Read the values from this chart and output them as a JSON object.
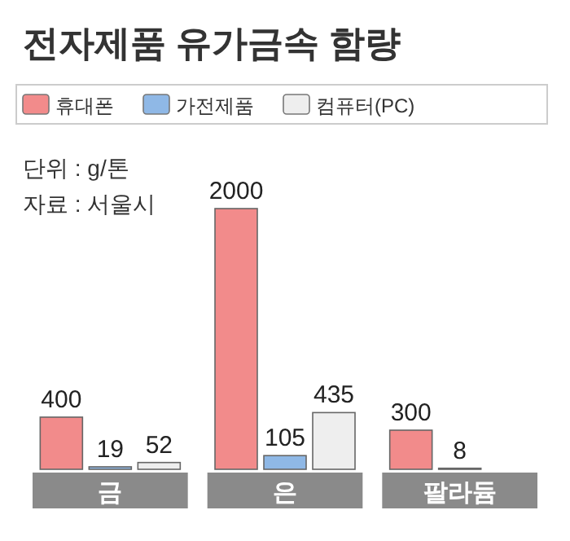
{
  "chart_data": {
    "type": "bar",
    "title": "전자제품 유가금속 함량",
    "categories": [
      "금",
      "은",
      "팔라듐"
    ],
    "series": [
      {
        "name": "휴대폰",
        "color": "#f28b8b",
        "values": [
          400,
          2000,
          300
        ]
      },
      {
        "name": "가전제품",
        "color": "#8fb8e6",
        "values": [
          19,
          105,
          8
        ]
      },
      {
        "name": "컴퓨터(PC)",
        "color": "#eeeeee",
        "values": [
          52,
          435,
          null
        ]
      }
    ],
    "data_labels": true,
    "legend": "top",
    "annotations": [
      "단위 : g/톤",
      "자료 : 서울시"
    ]
  }
}
